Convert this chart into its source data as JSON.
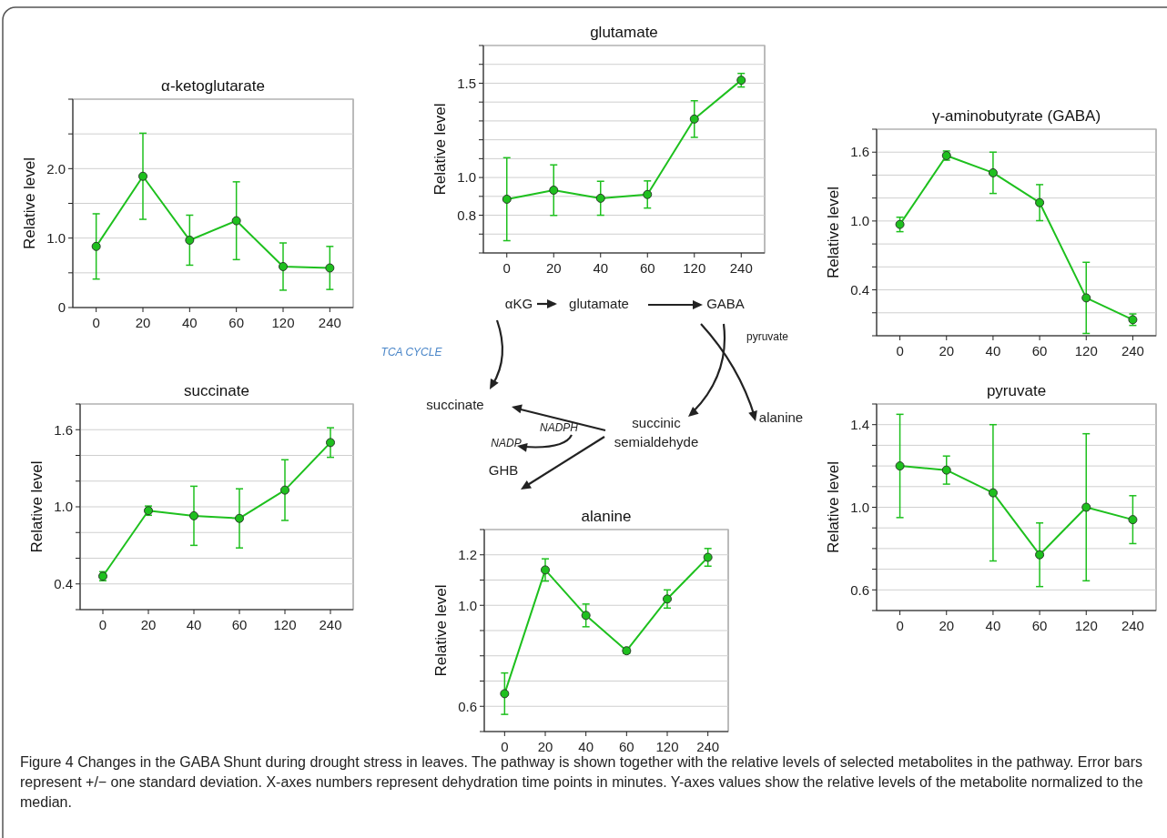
{
  "chart_data": [
    {
      "type": "line",
      "title": "α-ketoglutarate",
      "ylabel": "Relative level",
      "categories": [
        "0",
        "20",
        "40",
        "60",
        "120",
        "240"
      ],
      "marker": "circle",
      "grid": "y",
      "ylim": [
        0,
        3
      ],
      "yticks": [
        0,
        {
          "value": 0.5,
          "label": null
        },
        {
          "value": 1,
          "label": "1.0"
        },
        {
          "value": 1.5,
          "label": null
        },
        {
          "value": 2,
          "label": "2.0"
        },
        {
          "value": 2.5,
          "label": null
        },
        {
          "value": 3,
          "label": null
        }
      ],
      "series": [
        {
          "color": "#1ec01e",
          "values": [
            0.88,
            1.89,
            0.97,
            1.25,
            0.59,
            0.57
          ],
          "errors": [
            0.47,
            0.62,
            0.36,
            0.56,
            0.34,
            0.31
          ]
        }
      ]
    },
    {
      "type": "line",
      "title": "glutamate",
      "ylabel": "Relative level",
      "categories": [
        "0",
        "20",
        "40",
        "60",
        "120",
        "240"
      ],
      "marker": "circle",
      "grid": "y",
      "ylim": [
        0.6,
        1.7
      ],
      "yticks": [
        {
          "value": 0.6,
          "label": null
        },
        {
          "value": 0.7,
          "label": null
        },
        {
          "value": 0.8,
          "label": "0.8"
        },
        {
          "value": 0.9,
          "label": null
        },
        {
          "value": 1,
          "label": "1.0"
        },
        {
          "value": 1.1,
          "label": null
        },
        {
          "value": 1.2,
          "label": null
        },
        {
          "value": 1.3,
          "label": null
        },
        {
          "value": 1.4,
          "label": null
        },
        {
          "value": 1.5,
          "label": "1.5"
        },
        {
          "value": 1.6,
          "label": null
        },
        {
          "value": 1.7,
          "label": null
        }
      ],
      "series": [
        {
          "color": "#1ec01e",
          "values": [
            0.885,
            0.933,
            0.89,
            0.91,
            1.31,
            1.516
          ],
          "errors": [
            0.22,
            0.134,
            0.09,
            0.072,
            0.097,
            0.036
          ]
        }
      ]
    },
    {
      "type": "line",
      "title": "γ-aminobutyrate (GABA)",
      "ylabel": "Relative level",
      "categories": [
        "0",
        "20",
        "40",
        "60",
        "120",
        "240"
      ],
      "marker": "circle",
      "grid": "y",
      "ylim": [
        0,
        1.8
      ],
      "yticks": [
        {
          "value": 0,
          "label": null
        },
        {
          "value": 0.2,
          "label": null
        },
        {
          "value": 0.4,
          "label": "0.4"
        },
        {
          "value": 0.6,
          "label": null
        },
        {
          "value": 0.8,
          "label": null
        },
        {
          "value": 1,
          "label": "1.0"
        },
        {
          "value": 1.2,
          "label": null
        },
        {
          "value": 1.4,
          "label": null
        },
        {
          "value": 1.6,
          "label": "1.6"
        },
        {
          "value": 1.8,
          "label": null
        }
      ],
      "series": [
        {
          "color": "#1ec01e",
          "values": [
            0.97,
            1.57,
            1.42,
            1.16,
            0.33,
            0.14
          ],
          "errors": [
            0.063,
            0.04,
            0.18,
            0.157,
            0.31,
            0.05
          ]
        }
      ]
    },
    {
      "type": "other",
      "annotations": [
        "αKG",
        "glutamate",
        "GABA",
        "pyruvate",
        "TCA CYCLE",
        "succinate",
        "succinic semialdehyde",
        "alanine",
        "NADPH",
        "NADP",
        "GHB"
      ]
    },
    {
      "type": "line",
      "title": "succinate",
      "ylabel": "Relative level",
      "categories": [
        "0",
        "20",
        "40",
        "60",
        "120",
        "240"
      ],
      "marker": "circle",
      "grid": "y",
      "ylim": [
        0.2,
        1.8
      ],
      "yticks": [
        {
          "value": 0.2,
          "label": null
        },
        {
          "value": 0.4,
          "label": "0.4"
        },
        {
          "value": 0.6,
          "label": null
        },
        {
          "value": 0.8,
          "label": null
        },
        {
          "value": 1,
          "label": "1.0"
        },
        {
          "value": 1.2,
          "label": null
        },
        {
          "value": 1.4,
          "label": null
        },
        {
          "value": 1.6,
          "label": "1.6"
        },
        {
          "value": 1.8,
          "label": null
        }
      ],
      "series": [
        {
          "color": "#1ec01e",
          "values": [
            0.46,
            0.97,
            0.93,
            0.91,
            1.13,
            1.5
          ],
          "errors": [
            0.035,
            0.036,
            0.23,
            0.23,
            0.236,
            0.115
          ]
        }
      ]
    },
    {
      "type": "line",
      "title": "alanine",
      "ylabel": "Relative level",
      "categories": [
        "0",
        "20",
        "40",
        "60",
        "120",
        "240"
      ],
      "marker": "circle",
      "grid": "y",
      "ylim": [
        0.5,
        1.3
      ],
      "yticks": [
        {
          "value": 0.5,
          "label": null
        },
        {
          "value": 0.6,
          "label": "0.6"
        },
        {
          "value": 0.7,
          "label": null
        },
        {
          "value": 0.8,
          "label": null
        },
        {
          "value": 0.9,
          "label": null
        },
        {
          "value": 1,
          "label": "1.0"
        },
        {
          "value": 1.1,
          "label": null
        },
        {
          "value": 1.2,
          "label": "1.2"
        },
        {
          "value": 1.3,
          "label": null
        }
      ],
      "series": [
        {
          "color": "#1ec01e",
          "values": [
            0.65,
            1.14,
            0.96,
            0.82,
            1.025,
            1.19
          ],
          "errors": [
            0.082,
            0.044,
            0.045,
            0.011,
            0.036,
            0.035
          ]
        }
      ]
    },
    {
      "type": "line",
      "title": "pyruvate",
      "ylabel": "Relative level",
      "categories": [
        "0",
        "20",
        "40",
        "60",
        "120",
        "240"
      ],
      "marker": "circle",
      "grid": "y",
      "ylim": [
        0.5,
        1.5
      ],
      "yticks": [
        {
          "value": 0.5,
          "label": null
        },
        {
          "value": 0.6,
          "label": "0.6"
        },
        {
          "value": 0.7,
          "label": null
        },
        {
          "value": 0.8,
          "label": null
        },
        {
          "value": 0.9,
          "label": null
        },
        {
          "value": 1,
          "label": "1.0"
        },
        {
          "value": 1.1,
          "label": null
        },
        {
          "value": 1.2,
          "label": null
        },
        {
          "value": 1.3,
          "label": null
        },
        {
          "value": 1.4,
          "label": "1.4"
        },
        {
          "value": 1.5,
          "label": null
        }
      ],
      "series": [
        {
          "color": "#1ec01e",
          "values": [
            1.2,
            1.18,
            1.07,
            0.77,
            1.0,
            0.94
          ],
          "errors": [
            0.25,
            0.068,
            0.33,
            0.154,
            0.356,
            0.116
          ]
        }
      ]
    },
    {
      "type": "other",
      "annotations": [
        "Figure 4 Changes in the GABA Shunt during drought stress in leaves. The pathway is shown together with the relative levels of selected metabolites in the pathway. Error bars represent +/− one standard deviation. X-axes numbers represent dehydration time points in minutes. Y-axes values show the relative levels of the metabolite normalized to the median."
      ]
    }
  ]
}
